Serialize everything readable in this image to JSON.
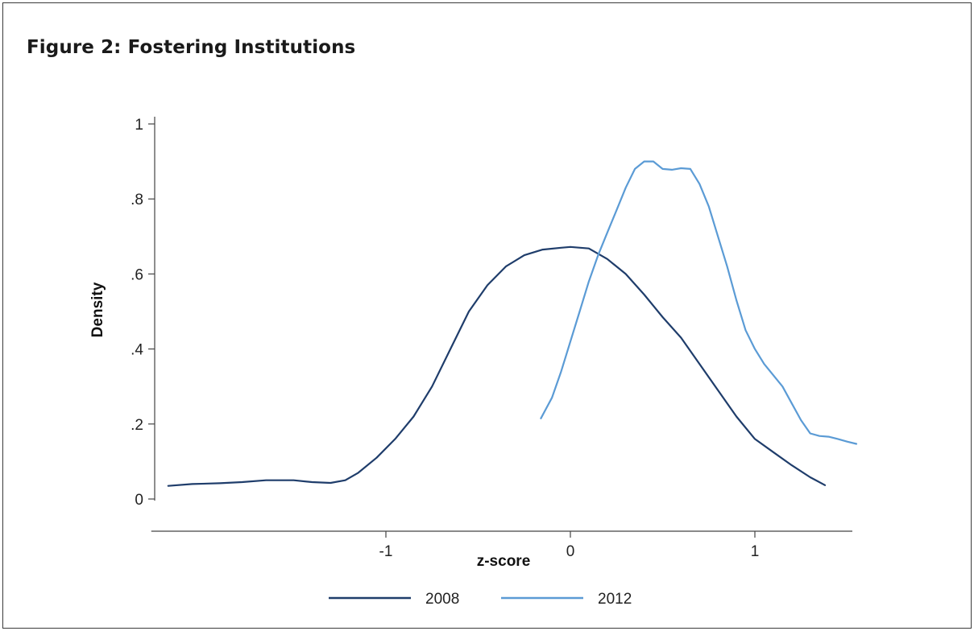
{
  "figure": {
    "title": "Figure 2: Fostering Institutions"
  },
  "chart_data": {
    "type": "line",
    "xlabel": "z-score",
    "ylabel": "Density",
    "xlim": [
      -2.25,
      1.6
    ],
    "ylim": [
      0,
      1
    ],
    "x_ticks": [
      {
        "value": -1,
        "label": "-1"
      },
      {
        "value": 0,
        "label": "0"
      },
      {
        "value": 1,
        "label": "1"
      }
    ],
    "y_ticks": [
      {
        "value": 0,
        "label": "0"
      },
      {
        "value": 0.2,
        "label": ".2"
      },
      {
        "value": 0.4,
        "label": ".4"
      },
      {
        "value": 0.6,
        "label": ".6"
      },
      {
        "value": 0.8,
        "label": ".8"
      },
      {
        "value": 1,
        "label": "1"
      }
    ],
    "grid": false,
    "legend_position": "bottom",
    "series": [
      {
        "name": "2008",
        "color": "#1f3d6b",
        "x": [
          -2.18,
          -2.05,
          -1.9,
          -1.78,
          -1.65,
          -1.5,
          -1.4,
          -1.3,
          -1.22,
          -1.15,
          -1.05,
          -0.95,
          -0.85,
          -0.75,
          -0.65,
          -0.55,
          -0.45,
          -0.35,
          -0.25,
          -0.15,
          -0.05,
          0.0,
          0.1,
          0.2,
          0.3,
          0.4,
          0.5,
          0.6,
          0.7,
          0.8,
          0.9,
          1.0,
          1.1,
          1.2,
          1.3,
          1.38
        ],
        "y": [
          0.035,
          0.04,
          0.042,
          0.045,
          0.05,
          0.05,
          0.045,
          0.043,
          0.05,
          0.07,
          0.11,
          0.16,
          0.22,
          0.3,
          0.4,
          0.5,
          0.57,
          0.62,
          0.65,
          0.665,
          0.67,
          0.672,
          0.668,
          0.64,
          0.6,
          0.545,
          0.485,
          0.43,
          0.36,
          0.29,
          0.22,
          0.16,
          0.125,
          0.09,
          0.058,
          0.037
        ]
      },
      {
        "name": "2012",
        "color": "#5b9bd5",
        "x": [
          -0.16,
          -0.1,
          -0.05,
          0.0,
          0.05,
          0.1,
          0.15,
          0.2,
          0.25,
          0.3,
          0.35,
          0.4,
          0.45,
          0.5,
          0.55,
          0.6,
          0.65,
          0.7,
          0.75,
          0.8,
          0.85,
          0.9,
          0.95,
          1.0,
          1.05,
          1.1,
          1.15,
          1.2,
          1.25,
          1.3,
          1.35,
          1.4,
          1.45,
          1.5,
          1.55
        ],
        "y": [
          0.215,
          0.27,
          0.34,
          0.42,
          0.5,
          0.58,
          0.65,
          0.71,
          0.77,
          0.83,
          0.88,
          0.9,
          0.9,
          0.88,
          0.878,
          0.882,
          0.88,
          0.84,
          0.78,
          0.7,
          0.62,
          0.53,
          0.45,
          0.4,
          0.36,
          0.33,
          0.3,
          0.255,
          0.21,
          0.175,
          0.168,
          0.166,
          0.16,
          0.153,
          0.147
        ]
      }
    ]
  }
}
